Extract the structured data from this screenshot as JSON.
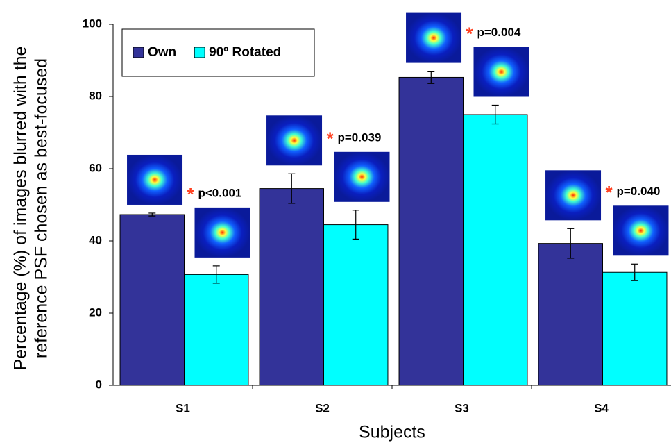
{
  "chart_data": {
    "type": "bar",
    "ylabel": [
      "Percentage (%) of images blurred with the",
      "reference PSF chosen as best-focused"
    ],
    "xlabel": "Subjects",
    "categories": [
      "S1",
      "S2",
      "S3",
      "S4"
    ],
    "series": [
      {
        "name": "Own",
        "color": "#333399",
        "values": [
          47.3,
          54.5,
          85.3,
          39.3
        ],
        "errors": [
          0.4,
          4.1,
          1.7,
          4.1
        ]
      },
      {
        "name": "90º Rotated",
        "color": "#00ffff",
        "values": [
          30.7,
          44.5,
          75,
          31.3
        ],
        "errors": [
          2.4,
          4,
          2.6,
          2.3
        ]
      }
    ],
    "annotations": [
      {
        "star": "*",
        "text": "p<0.001"
      },
      {
        "star": "*",
        "text": "p=0.039"
      },
      {
        "star": "*",
        "text": "p=0.004"
      },
      {
        "star": "*",
        "text": "p=0.040"
      }
    ],
    "ylim": [
      0,
      100
    ],
    "yticks": [
      0,
      20,
      40,
      60,
      80,
      100
    ],
    "legend": "upper left"
  }
}
